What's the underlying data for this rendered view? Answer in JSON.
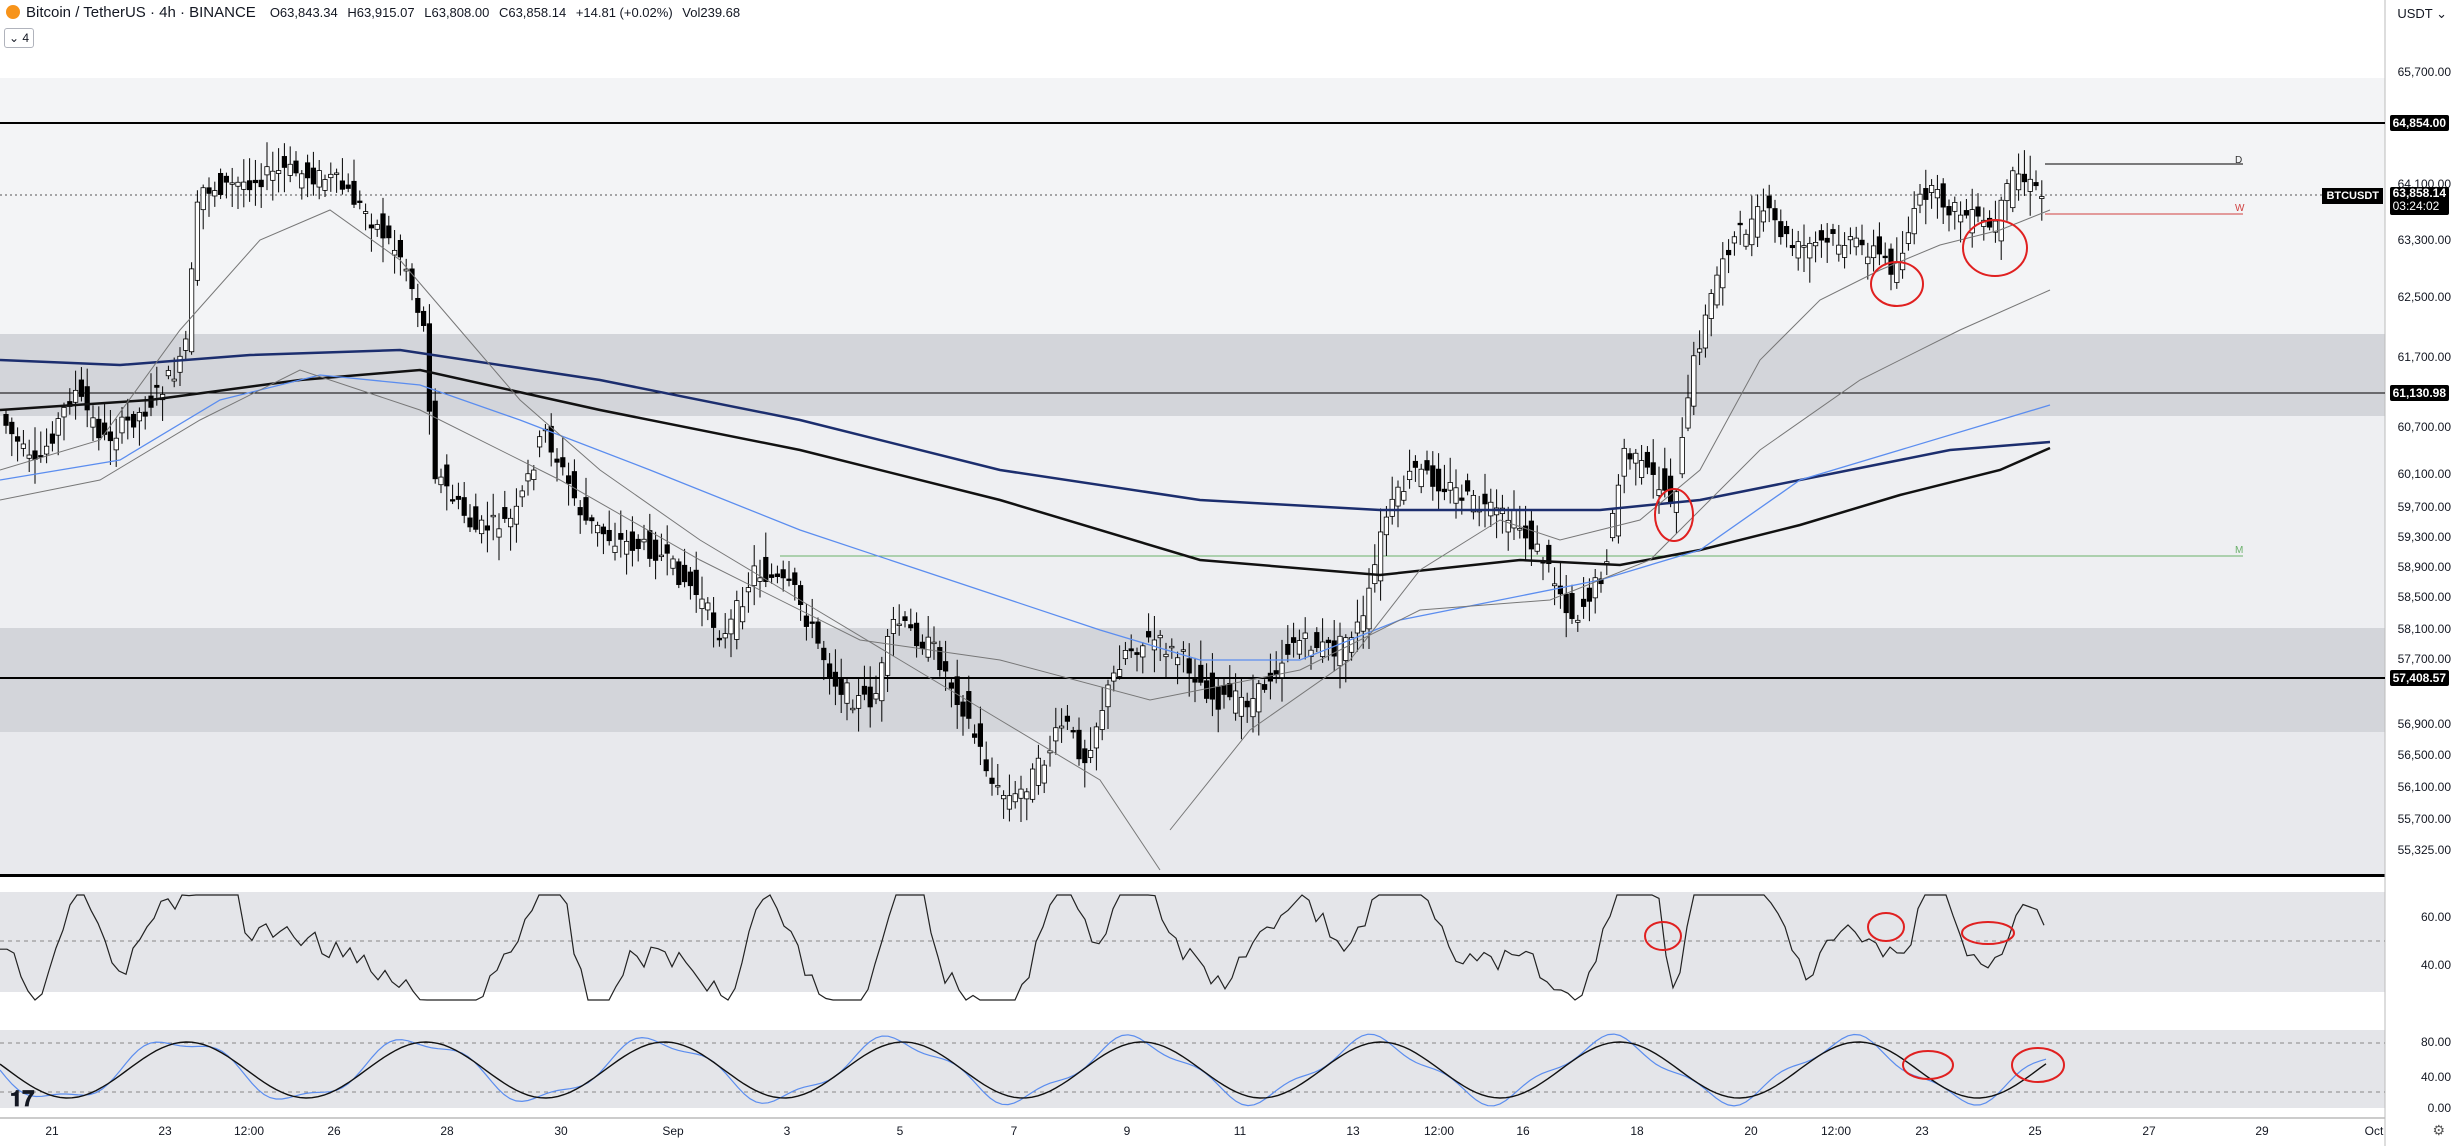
{
  "header": {
    "title": "Bitcoin / TetherUS · 4h · BINANCE",
    "open": "O63,843.34",
    "high": "H63,915.07",
    "low": "L63,808.00",
    "close": "C63,858.14",
    "change": "+14.81 (+0.02%)",
    "volume": "Vol239.68",
    "collapse_label": "4",
    "currency": "USDT"
  },
  "price_axis": {
    "ticks": [
      "65,700.00",
      "64,100.00",
      "63,300.00",
      "62,500.00",
      "61,700.00",
      "60,700.00",
      "60,100.00",
      "59,700.00",
      "59,300.00",
      "58,900.00",
      "58,500.00",
      "58,100.00",
      "57,700.00",
      "56,900.00",
      "56,500.00",
      "56,100.00",
      "55,700.00",
      "55,325.00"
    ],
    "labels": {
      "level_high": "64,854.00",
      "current_price": "63,858.14",
      "countdown": "03:24:02",
      "level_mid": "61,130.98",
      "level_low": "57,408.57"
    },
    "symbol_tag": "BTCUSDT"
  },
  "rsi_axis": {
    "ticks": [
      "60.00",
      "40.00"
    ]
  },
  "stoch_axis": {
    "ticks": [
      "80.00",
      "40.00",
      "0.00"
    ]
  },
  "time_axis": {
    "ticks": [
      "21",
      "23",
      "12:00",
      "26",
      "28",
      "30",
      "Sep",
      "3",
      "5",
      "7",
      "9",
      "11",
      "13",
      "12:00",
      "16",
      "18",
      "20",
      "12:00",
      "23",
      "25",
      "27",
      "29",
      "Oct"
    ]
  },
  "markers": {
    "d": "D",
    "w": "W",
    "m": "M"
  },
  "colors": {
    "up": "#ffffff",
    "down": "#000000",
    "ma_blue": "#5b8def",
    "ma_navy": "#1c2e6e",
    "ma_black": "#111111",
    "ma_gray": "#777777",
    "circle": "#e02020",
    "m_line": "#6ab06a",
    "w_line": "#d04040"
  }
}
